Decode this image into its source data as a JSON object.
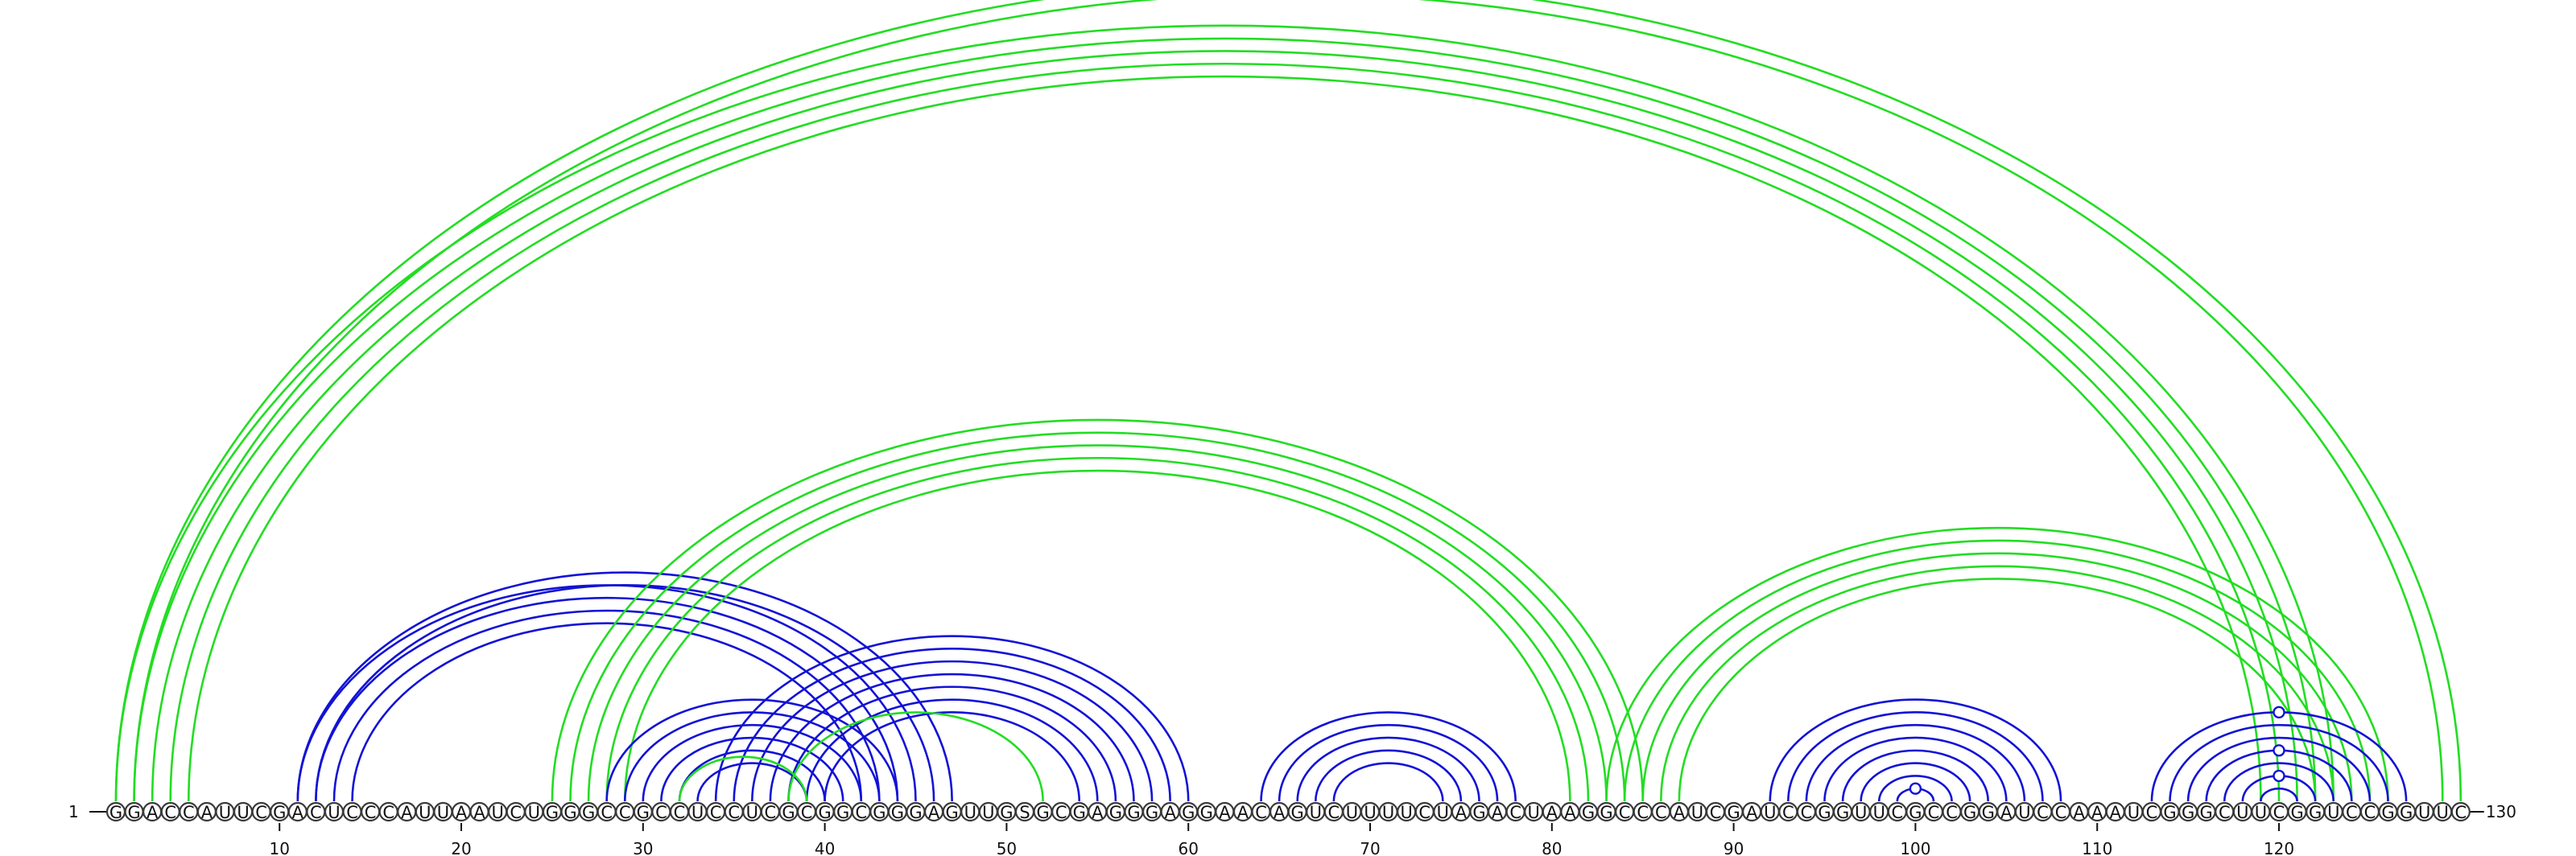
{
  "sequence": {
    "text": "GGACCAUUCGACUCCCAUUAAUCUGGGCCGCCUCCUCGCGGCGGGAGUUGSGCGAGGGAGGAACAGUCUUUUCUAGACUAAGGCCCAUCGAUCCGGUUCGCCGGAUCCAAAUCGGGCUUCGGUCCGGUUC",
    "start_label": "1",
    "end_label": "130"
  },
  "axis": {
    "tick_values": [
      10,
      20,
      30,
      40,
      50,
      60,
      70,
      80,
      90,
      100,
      110,
      120
    ]
  },
  "colors": {
    "blue": "#1212d6",
    "green": "#22dd22",
    "outline": "#3a3a3a"
  },
  "arc_groups": [
    {
      "color": "green",
      "pairs": [
        [
          1,
          123
        ],
        [
          2,
          122
        ],
        [
          3,
          121
        ],
        [
          4,
          120
        ],
        [
          5,
          119
        ]
      ]
    },
    {
      "color": "green",
      "pairs": [
        [
          1,
          130
        ],
        [
          2,
          129
        ]
      ]
    },
    {
      "color": "blue",
      "pairs": [
        [
          11,
          45
        ],
        [
          12,
          44
        ],
        [
          13,
          43
        ],
        [
          14,
          42
        ]
      ]
    },
    {
      "color": "blue",
      "pairs": [
        [
          11,
          47
        ],
        [
          12,
          46
        ]
      ]
    },
    {
      "color": "green",
      "pairs": [
        [
          25,
          85
        ],
        [
          26,
          84
        ],
        [
          27,
          83
        ],
        [
          28,
          82
        ],
        [
          29,
          81
        ]
      ]
    },
    {
      "color": "blue",
      "pairs": [
        [
          28,
          44
        ],
        [
          29,
          43
        ],
        [
          30,
          42
        ],
        [
          31,
          41
        ],
        [
          32,
          40
        ],
        [
          33,
          39
        ]
      ]
    },
    {
      "color": "blue",
      "pairs": [
        [
          34,
          60
        ],
        [
          35,
          59
        ],
        [
          36,
          58
        ],
        [
          37,
          57
        ],
        [
          38,
          56
        ],
        [
          39,
          55
        ],
        [
          40,
          54
        ]
      ]
    },
    {
      "color": "green",
      "pairs": [
        [
          32,
          39
        ]
      ]
    },
    {
      "color": "green",
      "pairs": [
        [
          38,
          52
        ]
      ]
    },
    {
      "color": "blue",
      "pairs": [
        [
          64,
          78
        ],
        [
          65,
          77
        ],
        [
          66,
          76
        ],
        [
          67,
          75
        ],
        [
          68,
          74
        ]
      ]
    },
    {
      "color": "green",
      "pairs": [
        [
          83,
          126
        ],
        [
          84,
          125
        ],
        [
          85,
          124
        ],
        [
          86,
          123
        ],
        [
          87,
          122
        ]
      ]
    },
    {
      "color": "blue",
      "pairs": [
        [
          92,
          108
        ],
        [
          93,
          107
        ],
        [
          94,
          106
        ],
        [
          95,
          105
        ],
        [
          96,
          104
        ],
        [
          97,
          103
        ],
        [
          98,
          102
        ],
        [
          99,
          101
        ]
      ]
    },
    {
      "color": "blue",
      "pairs": [
        [
          113,
          127
        ],
        [
          114,
          126
        ],
        [
          115,
          125
        ],
        [
          116,
          124
        ],
        [
          117,
          123
        ],
        [
          118,
          122
        ],
        [
          119,
          121
        ]
      ]
    }
  ],
  "markers": [
    {
      "arc": [
        1,
        130
      ],
      "color": "green"
    },
    {
      "arc": [
        99,
        101
      ],
      "color": "blue"
    },
    {
      "arc": [
        118,
        122
      ],
      "color": "blue"
    },
    {
      "arc": [
        116,
        124
      ],
      "color": "blue"
    },
    {
      "arc": [
        113,
        127
      ],
      "color": "blue"
    }
  ]
}
